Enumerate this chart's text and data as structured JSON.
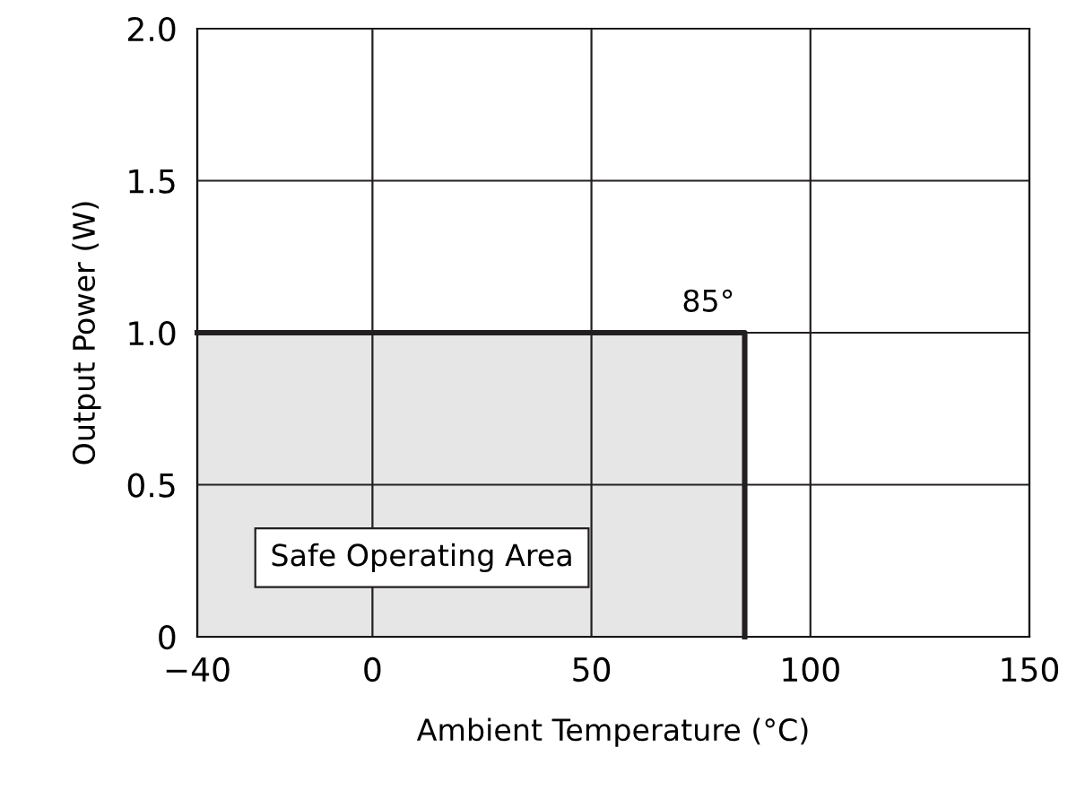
{
  "chart_data": {
    "type": "area",
    "xlabel": "Ambient Temperature (°C)",
    "ylabel": "Output Power (W)",
    "xlim": [
      -40,
      150
    ],
    "xticks": [
      {
        "value": -40,
        "label": "−40"
      },
      0,
      50,
      100,
      150
    ],
    "ylim": [
      0,
      2.0
    ],
    "yticks": [
      0,
      {
        "value": 0.5,
        "label": "0.5"
      },
      {
        "value": 1.0,
        "label": "1.0"
      },
      {
        "value": 1.5,
        "label": "1.5"
      },
      {
        "value": 2.0,
        "label": "2.0"
      }
    ],
    "grid": true,
    "x": [
      -40,
      85
    ],
    "series": [
      {
        "color": "#231f20",
        "values": [
          1.0,
          1.0
        ]
      }
    ],
    "annotations": [
      {
        "text": "85°",
        "x": 85,
        "y": 1.0
      },
      "Safe Operating Area"
    ]
  }
}
